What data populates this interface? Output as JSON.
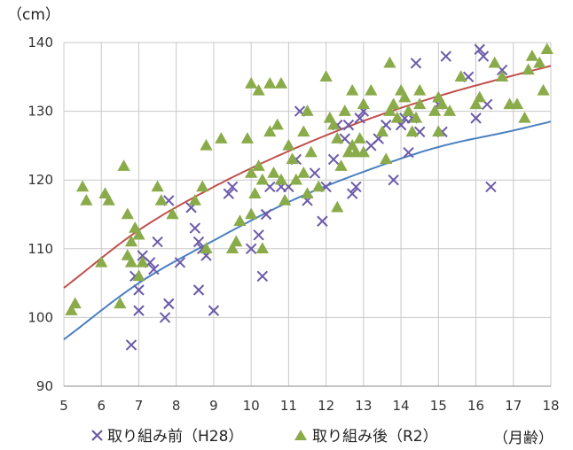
{
  "chart_data": {
    "type": "scatter",
    "title": "",
    "ylabel": "（cm）",
    "xlabel": "（月齢）",
    "xlim": [
      5,
      18
    ],
    "ylim": [
      90,
      140
    ],
    "x_ticks": [
      5,
      6,
      7,
      8,
      9,
      10,
      11,
      12,
      13,
      14,
      15,
      16,
      17,
      18
    ],
    "y_ticks": [
      90,
      100,
      110,
      120,
      130,
      140
    ],
    "grid": true,
    "legend_position": "bottom",
    "series": [
      {
        "name": "取り組み前（H28）",
        "marker": "x",
        "color": "#6b5aa8",
        "points": [
          [
            6.8,
            96
          ],
          [
            6.9,
            106
          ],
          [
            7.0,
            101
          ],
          [
            7.0,
            104
          ],
          [
            7.1,
            109
          ],
          [
            7.3,
            108
          ],
          [
            7.4,
            107
          ],
          [
            7.5,
            111
          ],
          [
            7.7,
            100
          ],
          [
            7.8,
            117
          ],
          [
            7.8,
            102
          ],
          [
            8.1,
            108
          ],
          [
            8.4,
            116
          ],
          [
            8.5,
            113
          ],
          [
            8.6,
            111
          ],
          [
            8.6,
            104
          ],
          [
            8.7,
            110
          ],
          [
            8.8,
            109
          ],
          [
            9.0,
            101
          ],
          [
            9.4,
            118
          ],
          [
            9.5,
            119
          ],
          [
            10.0,
            110
          ],
          [
            10.2,
            112
          ],
          [
            10.3,
            106
          ],
          [
            10.4,
            115
          ],
          [
            10.5,
            119
          ],
          [
            10.8,
            119
          ],
          [
            11.0,
            119
          ],
          [
            11.2,
            123
          ],
          [
            11.3,
            130
          ],
          [
            11.5,
            117
          ],
          [
            11.7,
            121
          ],
          [
            11.9,
            114
          ],
          [
            12.0,
            119
          ],
          [
            12.2,
            123
          ],
          [
            12.3,
            128
          ],
          [
            12.5,
            126
          ],
          [
            12.6,
            128
          ],
          [
            12.7,
            118
          ],
          [
            12.8,
            119
          ],
          [
            12.9,
            129
          ],
          [
            13.0,
            130
          ],
          [
            13.2,
            125
          ],
          [
            13.4,
            126
          ],
          [
            13.6,
            128
          ],
          [
            13.8,
            120
          ],
          [
            14.0,
            128
          ],
          [
            14.1,
            129
          ],
          [
            14.2,
            124
          ],
          [
            14.3,
            129
          ],
          [
            14.4,
            137
          ],
          [
            14.5,
            127
          ],
          [
            15.0,
            131
          ],
          [
            15.1,
            127
          ],
          [
            15.2,
            138
          ],
          [
            15.8,
            135
          ],
          [
            16.0,
            129
          ],
          [
            16.1,
            139
          ],
          [
            16.2,
            138
          ],
          [
            16.3,
            131
          ],
          [
            16.4,
            119
          ],
          [
            16.7,
            136
          ]
        ]
      },
      {
        "name": "取り組み後（R2）",
        "marker": "triangle",
        "color": "#8aab4a",
        "points": [
          [
            5.2,
            101
          ],
          [
            5.3,
            102
          ],
          [
            5.5,
            119
          ],
          [
            5.6,
            117
          ],
          [
            6.0,
            108
          ],
          [
            6.1,
            118
          ],
          [
            6.2,
            117
          ],
          [
            6.5,
            102
          ],
          [
            6.6,
            122
          ],
          [
            6.7,
            109
          ],
          [
            6.7,
            115
          ],
          [
            6.8,
            108
          ],
          [
            6.8,
            111
          ],
          [
            6.9,
            113
          ],
          [
            7.0,
            112
          ],
          [
            7.0,
            106
          ],
          [
            7.1,
            108
          ],
          [
            7.5,
            119
          ],
          [
            7.6,
            117
          ],
          [
            7.9,
            115
          ],
          [
            8.5,
            117
          ],
          [
            8.7,
            119
          ],
          [
            8.8,
            125
          ],
          [
            8.8,
            110
          ],
          [
            9.2,
            126
          ],
          [
            9.5,
            110
          ],
          [
            9.6,
            111
          ],
          [
            9.7,
            114
          ],
          [
            9.9,
            126
          ],
          [
            10.0,
            121
          ],
          [
            10.0,
            134
          ],
          [
            10.0,
            115
          ],
          [
            10.1,
            118
          ],
          [
            10.2,
            122
          ],
          [
            10.2,
            133
          ],
          [
            10.3,
            110
          ],
          [
            10.3,
            120
          ],
          [
            10.5,
            127
          ],
          [
            10.5,
            134
          ],
          [
            10.6,
            121
          ],
          [
            10.7,
            128
          ],
          [
            10.8,
            120
          ],
          [
            10.8,
            134
          ],
          [
            10.9,
            117
          ],
          [
            11.0,
            125
          ],
          [
            11.1,
            123
          ],
          [
            11.2,
            120
          ],
          [
            11.4,
            121
          ],
          [
            11.4,
            127
          ],
          [
            11.5,
            118
          ],
          [
            11.5,
            130
          ],
          [
            11.6,
            124
          ],
          [
            11.8,
            119
          ],
          [
            12.0,
            135
          ],
          [
            12.1,
            129
          ],
          [
            12.2,
            128
          ],
          [
            12.3,
            126
          ],
          [
            12.3,
            116
          ],
          [
            12.4,
            122
          ],
          [
            12.5,
            130
          ],
          [
            12.6,
            124
          ],
          [
            12.7,
            133
          ],
          [
            12.7,
            125
          ],
          [
            12.8,
            124
          ],
          [
            12.9,
            126
          ],
          [
            13.0,
            131
          ],
          [
            13.0,
            124
          ],
          [
            13.2,
            133
          ],
          [
            13.5,
            127
          ],
          [
            13.6,
            123
          ],
          [
            13.7,
            137
          ],
          [
            13.7,
            130
          ],
          [
            13.8,
            131
          ],
          [
            13.9,
            129
          ],
          [
            14.0,
            133
          ],
          [
            14.1,
            132
          ],
          [
            14.2,
            130
          ],
          [
            14.3,
            127
          ],
          [
            14.4,
            129
          ],
          [
            14.5,
            133
          ],
          [
            14.5,
            131
          ],
          [
            14.9,
            130
          ],
          [
            15.0,
            132
          ],
          [
            15.0,
            127
          ],
          [
            15.1,
            131
          ],
          [
            15.3,
            130
          ],
          [
            15.6,
            135
          ],
          [
            16.0,
            131
          ],
          [
            16.1,
            132
          ],
          [
            16.5,
            137
          ],
          [
            16.7,
            135
          ],
          [
            16.9,
            131
          ],
          [
            17.1,
            131
          ],
          [
            17.3,
            129
          ],
          [
            17.4,
            136
          ],
          [
            17.5,
            138
          ],
          [
            17.7,
            137
          ],
          [
            17.8,
            133
          ],
          [
            17.9,
            139
          ]
        ]
      }
    ],
    "trendlines": [
      {
        "series": "取り組み前（H28）",
        "color": "#4a7fc1",
        "type": "logarithmic",
        "points": [
          [
            5,
            96.8
          ],
          [
            7,
            105.0
          ],
          [
            9,
            111.2
          ],
          [
            11,
            116.8
          ],
          [
            13,
            121.2
          ],
          [
            15,
            124.8
          ],
          [
            17,
            127.2
          ],
          [
            18,
            128.5
          ]
        ]
      },
      {
        "series": "取り組み後（R2）",
        "color": "#c0504d",
        "type": "logarithmic",
        "points": [
          [
            5,
            104.3
          ],
          [
            7,
            112.7
          ],
          [
            9,
            119.0
          ],
          [
            11,
            124.2
          ],
          [
            13,
            128.6
          ],
          [
            15,
            132.2
          ],
          [
            17,
            135.2
          ],
          [
            18,
            136.6
          ]
        ]
      }
    ]
  }
}
